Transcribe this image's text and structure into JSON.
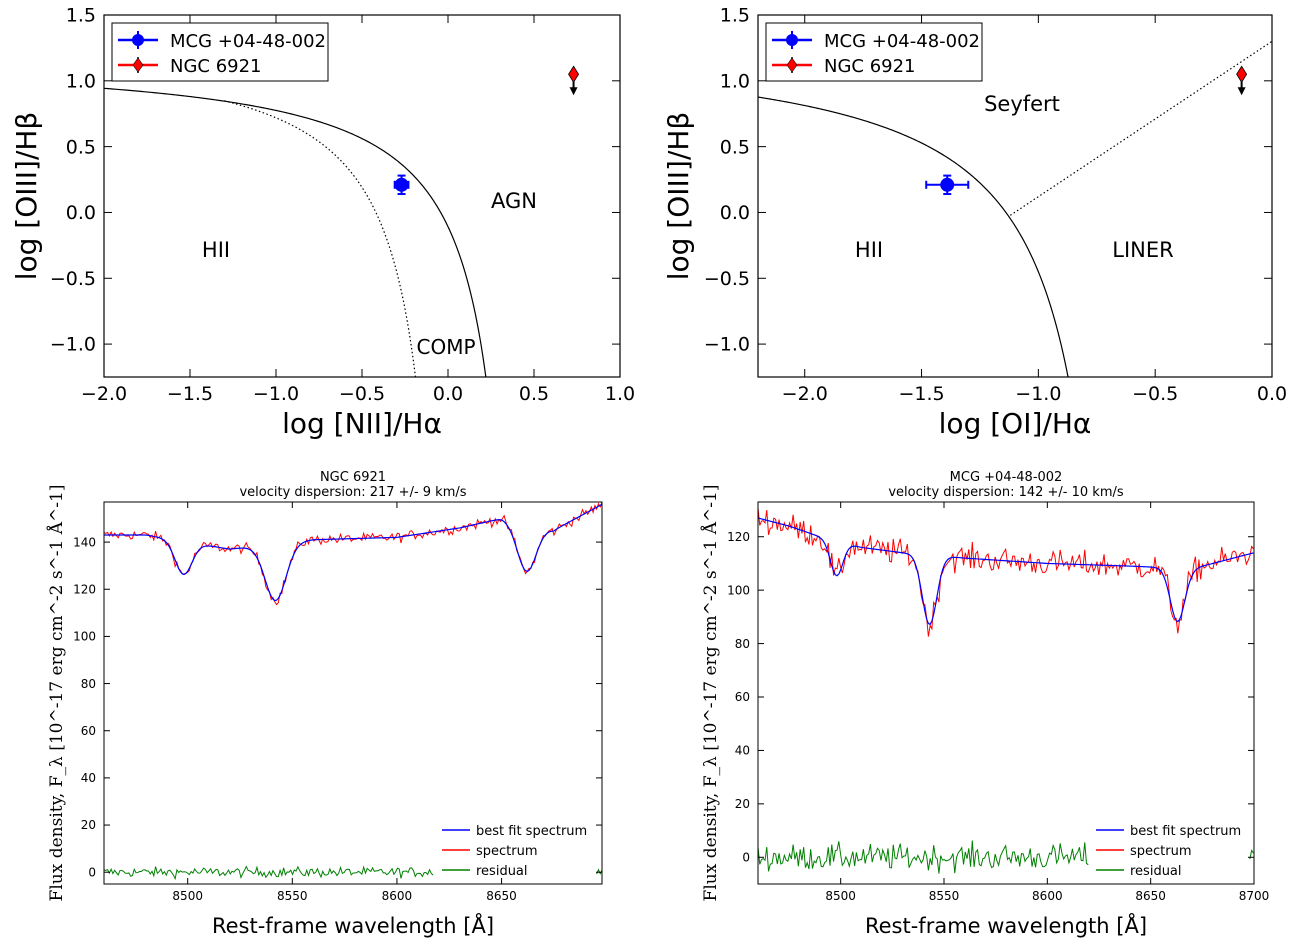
{
  "chart_data": [
    {
      "type": "scatter",
      "xlabel": "log [NII]/Hα",
      "ylabel": "log [OIII]/Hβ",
      "xlim": [
        -2.0,
        1.0
      ],
      "ylim": [
        -1.25,
        1.5
      ],
      "x_ticks": [
        -2.0,
        -1.5,
        -1.0,
        -0.5,
        0.0,
        0.5,
        1.0
      ],
      "y_ticks": [
        -1.0,
        -0.5,
        0.0,
        0.5,
        1.0,
        1.5
      ],
      "x_tick_labels": [
        "−2.0",
        "−1.5",
        "−1.0",
        "−0.5",
        "0.0",
        "0.5",
        "1.0"
      ],
      "y_tick_labels": [
        "−1.0",
        "−0.5",
        "0.0",
        "0.5",
        "1.0",
        "1.5"
      ],
      "legend_position": "top-left",
      "series": [
        {
          "name": "MCG +04-48-002",
          "color": "#0000ff",
          "marker": "circle",
          "x": -0.27,
          "y": 0.21,
          "xerr": 0.04,
          "yerr": 0.07,
          "upper_limit": false
        },
        {
          "name": "NGC 6921",
          "color": "#ff0000",
          "marker": "diamond",
          "x": 0.73,
          "y": 1.05,
          "xerr": 0.0,
          "yerr": 0.0,
          "upper_limit": true
        }
      ],
      "region_labels": [
        "HII",
        "AGN",
        "COMP"
      ],
      "curves": [
        {
          "style": "solid",
          "formula": "0.61/(x-0.47)+1.19"
        },
        {
          "style": "dotted",
          "formula": "0.61/(x-0.05)+1.3"
        }
      ]
    },
    {
      "type": "scatter",
      "xlabel": "log [OI]/Hα",
      "ylabel": "log [OIII]/Hβ",
      "xlim": [
        -2.2,
        0.0
      ],
      "ylim": [
        -1.25,
        1.5
      ],
      "x_ticks": [
        -2.0,
        -1.5,
        -1.0,
        -0.5,
        0.0
      ],
      "y_ticks": [
        -1.0,
        -0.5,
        0.0,
        0.5,
        1.0,
        1.5
      ],
      "x_tick_labels": [
        "−2.0",
        "−1.5",
        "−1.0",
        "−0.5",
        "0.0"
      ],
      "y_tick_labels": [
        "−1.0",
        "−0.5",
        "0.0",
        "0.5",
        "1.0",
        "1.5"
      ],
      "legend_position": "top-left",
      "series": [
        {
          "name": "MCG +04-48-002",
          "color": "#0000ff",
          "marker": "circle",
          "x": -1.39,
          "y": 0.21,
          "xerr": 0.09,
          "yerr": 0.07,
          "upper_limit": false
        },
        {
          "name": "NGC 6921",
          "color": "#ff0000",
          "marker": "diamond",
          "x": -0.13,
          "y": 1.05,
          "xerr": 0.0,
          "yerr": 0.0,
          "upper_limit": true
        }
      ],
      "region_labels": [
        "Seyfert",
        "HII",
        "LINER"
      ],
      "curves": [
        {
          "style": "solid",
          "formula": "0.73/(x+0.59)+1.33"
        },
        {
          "style": "dotted",
          "formula": "1.18x+1.30"
        }
      ]
    },
    {
      "type": "line",
      "title": "NGC 6921",
      "subtitle": "velocity dispersion: 217 +/- 9 km/s",
      "xlabel": "Rest-frame wavelength [Å]",
      "ylabel": "Flux density, F_λ [10^-17 erg cm^-2 s^-1 Å^-1]",
      "xlim": [
        8460,
        8698
      ],
      "ylim": [
        -5,
        157
      ],
      "x_ticks": [
        8500,
        8550,
        8600,
        8650
      ],
      "y_ticks": [
        0,
        20,
        40,
        60,
        80,
        100,
        120,
        140
      ],
      "x_tick_labels": [
        "8500",
        "8550",
        "8600",
        "8650"
      ],
      "y_tick_labels": [
        "0",
        "20",
        "40",
        "60",
        "80",
        "100",
        "120",
        "140"
      ],
      "legend_position": "bottom-right",
      "continuum": [
        [
          8460,
          143
        ],
        [
          8480,
          143
        ],
        [
          8520,
          137
        ],
        [
          8560,
          141
        ],
        [
          8600,
          142
        ],
        [
          8630,
          146
        ],
        [
          8650,
          150
        ],
        [
          8675,
          145
        ],
        [
          8698,
          156
        ]
      ],
      "absorption_lines": [
        {
          "center": 8498,
          "depth": 14,
          "width": 4
        },
        {
          "center": 8542,
          "depth": 24,
          "width": 5
        },
        {
          "center": 8662,
          "depth": 20,
          "width": 4.5
        }
      ],
      "series": [
        {
          "name": "best fit spectrum",
          "color": "#0000ff",
          "noise": 0
        },
        {
          "name": "spectrum",
          "color": "#ff0000",
          "noise": 1.5
        },
        {
          "name": "residual",
          "color": "#008000",
          "noise": 1.5,
          "gaps": [
            [
              8618,
              8695
            ]
          ]
        }
      ]
    },
    {
      "type": "line",
      "title": "MCG +04-48-002",
      "subtitle": "velocity dispersion: 142 +/- 10 km/s",
      "xlabel": "Rest-frame wavelength [Å]",
      "ylabel": "Flux density, F_λ [10^-17 erg cm^-2 s^-1 Å^-1]",
      "xlim": [
        8460,
        8700
      ],
      "ylim": [
        -10,
        133
      ],
      "x_ticks": [
        8500,
        8550,
        8600,
        8650,
        8700
      ],
      "y_ticks": [
        0,
        20,
        40,
        60,
        80,
        100,
        120
      ],
      "x_tick_labels": [
        "8500",
        "8550",
        "8600",
        "8650",
        "8700"
      ],
      "y_tick_labels": [
        "0",
        "20",
        "40",
        "60",
        "80",
        "100",
        "120"
      ],
      "legend_position": "bottom-right",
      "continuum": [
        [
          8460,
          127
        ],
        [
          8475,
          124
        ],
        [
          8490,
          120
        ],
        [
          8510,
          116
        ],
        [
          8530,
          114
        ],
        [
          8560,
          112
        ],
        [
          8600,
          110
        ],
        [
          8640,
          109
        ],
        [
          8670,
          108
        ],
        [
          8700,
          114
        ]
      ],
      "absorption_lines": [
        {
          "center": 8498,
          "depth": 13,
          "width": 3
        },
        {
          "center": 8543,
          "depth": 26,
          "width": 3.5
        },
        {
          "center": 8663,
          "depth": 20,
          "width": 3.5
        }
      ],
      "series": [
        {
          "name": "best fit spectrum",
          "color": "#0000ff",
          "noise": 0
        },
        {
          "name": "spectrum",
          "color": "#ff0000",
          "noise": 3.5
        },
        {
          "name": "residual",
          "color": "#008000",
          "noise": 3.5,
          "gaps": [
            [
              8620,
              8698
            ]
          ]
        }
      ]
    }
  ]
}
